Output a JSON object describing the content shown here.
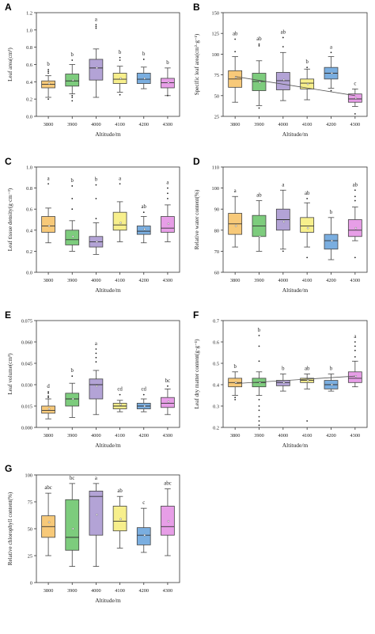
{
  "chart_data": [
    {
      "panel": "A",
      "type": "box",
      "xlabel": "Altitude/m",
      "ylabel": "Leaf area(cm²)",
      "categories": [
        "3800",
        "3900",
        "4000",
        "4100",
        "4200",
        "4300"
      ],
      "ylim": [
        0.0,
        1.2
      ],
      "yticks": [
        "0.0",
        "0.2",
        "0.4",
        "0.6",
        "0.8",
        "1.0",
        "1.2"
      ],
      "yticks_values": [
        0.0,
        0.2,
        0.4,
        0.6,
        0.8,
        1.0,
        1.2
      ],
      "boxes": [
        {
          "whisker_low": 0.22,
          "q1": 0.33,
          "median": 0.37,
          "q3": 0.41,
          "whisker_high": 0.47,
          "mean": 0.38,
          "outliers": [
            0.5,
            0.52,
            0.54,
            0.2
          ]
        },
        {
          "whisker_low": 0.26,
          "q1": 0.35,
          "median": 0.41,
          "q3": 0.49,
          "whisker_high": 0.6,
          "mean": 0.42,
          "outliers": [
            0.65,
            0.24,
            0.22,
            0.18
          ]
        },
        {
          "whisker_low": 0.22,
          "q1": 0.42,
          "median": 0.56,
          "q3": 0.66,
          "whisker_high": 0.78,
          "mean": 0.56,
          "outliers": [
            1.02,
            1.04,
            1.06
          ]
        },
        {
          "whisker_low": 0.28,
          "q1": 0.38,
          "median": 0.43,
          "q3": 0.5,
          "whisker_high": 0.58,
          "mean": 0.44,
          "outliers": [
            0.65,
            0.68,
            0.25
          ]
        },
        {
          "whisker_low": 0.32,
          "q1": 0.38,
          "median": 0.43,
          "q3": 0.5,
          "whisker_high": 0.57,
          "mean": 0.44,
          "outliers": [
            0.66
          ]
        },
        {
          "whisker_low": 0.24,
          "q1": 0.33,
          "median": 0.39,
          "q3": 0.44,
          "whisker_high": 0.56,
          "mean": 0.39,
          "outliers": [
            0.24
          ]
        }
      ],
      "letters": [
        "b",
        "b",
        "a",
        "b",
        "b",
        "b"
      ],
      "colors": [
        "#f7c979",
        "#7dcc7d",
        "#b3a3d6",
        "#f7ef8c",
        "#7aaee0",
        "#e79ee7"
      ]
    },
    {
      "panel": "B",
      "type": "box",
      "xlabel": "Altitude/m",
      "ylabel": "Specific leaf area(cm²·g⁻¹)",
      "categories": [
        "3800",
        "3900",
        "4000",
        "4100",
        "4200",
        "4300"
      ],
      "ylim": [
        25,
        150
      ],
      "yticks": [
        "25",
        "50",
        "75",
        "100",
        "125",
        "150"
      ],
      "yticks_values": [
        25,
        50,
        75,
        100,
        125,
        150
      ],
      "boxes": [
        {
          "whisker_low": 42,
          "q1": 60,
          "median": 70,
          "q3": 80,
          "whisker_high": 97,
          "mean": 72,
          "outliers": [
            103,
            118
          ]
        },
        {
          "whisker_low": 38,
          "q1": 56,
          "median": 67,
          "q3": 77,
          "whisker_high": 92,
          "mean": 66,
          "outliers": [
            110,
            112,
            35
          ]
        },
        {
          "whisker_low": 44,
          "q1": 57,
          "median": 68,
          "q3": 78,
          "whisker_high": 102,
          "mean": 69,
          "outliers": [
            109,
            120
          ]
        },
        {
          "whisker_low": 45,
          "q1": 58,
          "median": 65,
          "q3": 70,
          "whisker_high": 82,
          "mean": 64,
          "outliers": [
            84
          ]
        },
        {
          "whisker_low": 59,
          "q1": 70,
          "median": 77,
          "q3": 84,
          "whisker_high": 97,
          "mean": 77,
          "outliers": [
            102,
            56
          ]
        },
        {
          "whisker_low": 37,
          "q1": 42,
          "median": 46,
          "q3": 52,
          "whisker_high": 58,
          "mean": 47,
          "outliers": [
            28
          ]
        }
      ],
      "letters": [
        "ab",
        "ab",
        "ab",
        "b",
        "a",
        "c"
      ],
      "trend": [
        73,
        50
      ],
      "colors": [
        "#f7c979",
        "#7dcc7d",
        "#b3a3d6",
        "#f7ef8c",
        "#7aaee0",
        "#e79ee7"
      ]
    },
    {
      "panel": "C",
      "type": "box",
      "xlabel": "Altitude/m",
      "ylabel": "Leaf tissue density(g·cm⁻³)",
      "categories": [
        "3800",
        "3900",
        "4000",
        "4100",
        "4200",
        "4300"
      ],
      "ylim": [
        0.0,
        1.0
      ],
      "yticks": [
        "0.0",
        "0.2",
        "0.4",
        "0.6",
        "0.8",
        "1.0"
      ],
      "yticks_values": [
        0.0,
        0.2,
        0.4,
        0.6,
        0.8,
        1.0
      ],
      "boxes": [
        {
          "whisker_low": 0.28,
          "q1": 0.38,
          "median": 0.44,
          "q3": 0.53,
          "whisker_high": 0.61,
          "mean": 0.44,
          "outliers": [
            0.84
          ]
        },
        {
          "whisker_low": 0.2,
          "q1": 0.26,
          "median": 0.31,
          "q3": 0.4,
          "whisker_high": 0.49,
          "mean": 0.34,
          "outliers": [
            0.6,
            0.7,
            0.82
          ]
        },
        {
          "whisker_low": 0.17,
          "q1": 0.24,
          "median": 0.29,
          "q3": 0.34,
          "whisker_high": 0.47,
          "mean": 0.29,
          "outliers": [
            0.51,
            0.7,
            0.83
          ]
        },
        {
          "whisker_low": 0.29,
          "q1": 0.4,
          "median": 0.45,
          "q3": 0.57,
          "whisker_high": 0.67,
          "mean": 0.47,
          "outliers": [
            0.84
          ]
        },
        {
          "whisker_low": 0.28,
          "q1": 0.36,
          "median": 0.39,
          "q3": 0.44,
          "whisker_high": 0.53,
          "mean": 0.41,
          "outliers": [
            0.57
          ]
        },
        {
          "whisker_low": 0.29,
          "q1": 0.38,
          "median": 0.42,
          "q3": 0.53,
          "whisker_high": 0.64,
          "mean": 0.46,
          "outliers": [
            0.7,
            0.75,
            0.8
          ]
        }
      ],
      "letters": [
        "a",
        "b",
        "b",
        "a",
        "ab",
        "a"
      ],
      "colors": [
        "#f7c979",
        "#7dcc7d",
        "#b3a3d6",
        "#f7ef8c",
        "#7aaee0",
        "#e79ee7"
      ]
    },
    {
      "panel": "D",
      "type": "box",
      "xlabel": "Altitude/m",
      "ylabel": "Relative water content(%)",
      "categories": [
        "3800",
        "3900",
        "4000",
        "4100",
        "4200",
        "4300"
      ],
      "ylim": [
        60,
        110
      ],
      "yticks": [
        "60",
        "70",
        "80",
        "90",
        "100",
        "110"
      ],
      "yticks_values": [
        60,
        70,
        80,
        90,
        100,
        110
      ],
      "boxes": [
        {
          "whisker_low": 72,
          "q1": 78,
          "median": 83,
          "q3": 88,
          "whisker_high": 96,
          "mean": 82,
          "outliers": []
        },
        {
          "whisker_low": 70,
          "q1": 77,
          "median": 82,
          "q3": 87,
          "whisker_high": 94,
          "mean": 77,
          "outliers": []
        },
        {
          "whisker_low": 71,
          "q1": 80,
          "median": 85,
          "q3": 90,
          "whisker_high": 99,
          "mean": 84,
          "outliers": [
            70
          ]
        },
        {
          "whisker_low": 72,
          "q1": 79,
          "median": 82,
          "q3": 86,
          "whisker_high": 93,
          "mean": 81,
          "outliers": [
            95,
            67
          ]
        },
        {
          "whisker_low": 66,
          "q1": 71,
          "median": 75,
          "q3": 78,
          "whisker_high": 86,
          "mean": 75,
          "outliers": []
        },
        {
          "whisker_low": 75,
          "q1": 77,
          "median": 80,
          "q3": 85,
          "whisker_high": 91,
          "mean": 81,
          "outliers": [
            94,
            96,
            99,
            67
          ]
        }
      ],
      "letters": [
        "a",
        "ab",
        "a",
        "ab",
        "b",
        "ab"
      ],
      "colors": [
        "#f7c979",
        "#7dcc7d",
        "#b3a3d6",
        "#f7ef8c",
        "#7aaee0",
        "#e79ee7"
      ]
    },
    {
      "panel": "E",
      "type": "box",
      "xlabel": "Altitude/m",
      "ylabel": "Leaf volume(cm³)",
      "categories": [
        "3800",
        "3900",
        "4000",
        "4100",
        "4200",
        "4300"
      ],
      "ylim": [
        0.0,
        0.075
      ],
      "yticks": [
        "0.000",
        "0.015",
        "0.030",
        "0.045",
        "0.060",
        "0.075"
      ],
      "yticks_values": [
        0.0,
        0.015,
        0.03,
        0.045,
        0.06,
        0.075
      ],
      "boxes": [
        {
          "whisker_low": 0.006,
          "q1": 0.01,
          "median": 0.012,
          "q3": 0.015,
          "whisker_high": 0.02,
          "mean": 0.013,
          "outliers": [
            0.021,
            0.022,
            0.024,
            0.025
          ]
        },
        {
          "whisker_low": 0.007,
          "q1": 0.015,
          "median": 0.02,
          "q3": 0.024,
          "whisker_high": 0.031,
          "mean": 0.02,
          "outliers": [
            0.036
          ]
        },
        {
          "whisker_low": 0.009,
          "q1": 0.02,
          "median": 0.03,
          "q3": 0.034,
          "whisker_high": 0.04,
          "mean": 0.029,
          "outliers": [
            0.046,
            0.049,
            0.052,
            0.055
          ]
        },
        {
          "whisker_low": 0.011,
          "q1": 0.013,
          "median": 0.015,
          "q3": 0.017,
          "whisker_high": 0.019,
          "mean": 0.016,
          "outliers": [
            0.023
          ]
        },
        {
          "whisker_low": 0.011,
          "q1": 0.013,
          "median": 0.015,
          "q3": 0.017,
          "whisker_high": 0.02,
          "mean": 0.015,
          "outliers": [
            0.023
          ]
        },
        {
          "whisker_low": 0.009,
          "q1": 0.014,
          "median": 0.017,
          "q3": 0.021,
          "whisker_high": 0.027,
          "mean": 0.018,
          "outliers": [
            0.029
          ]
        }
      ],
      "letters": [
        "d",
        "b",
        "a",
        "cd",
        "cd",
        "bc"
      ],
      "colors": [
        "#f7c979",
        "#7dcc7d",
        "#b3a3d6",
        "#f7ef8c",
        "#7aaee0",
        "#e79ee7"
      ]
    },
    {
      "panel": "F",
      "type": "box",
      "xlabel": "Altitude/m",
      "ylabel": "Leaf dry matter content(g·g⁻¹)",
      "categories": [
        "3800",
        "3900",
        "4000",
        "4100",
        "4200",
        "4300"
      ],
      "ylim": [
        0.2,
        0.7
      ],
      "yticks": [
        "0.2",
        "0.3",
        "0.4",
        "0.5",
        "0.6",
        "0.7"
      ],
      "yticks_values": [
        0.2,
        0.3,
        0.4,
        0.5,
        0.6,
        0.7
      ],
      "boxes": [
        {
          "whisker_low": 0.35,
          "q1": 0.39,
          "median": 0.41,
          "q3": 0.43,
          "whisker_high": 0.46,
          "mean": 0.41,
          "outliers": [
            0.34,
            0.33
          ]
        },
        {
          "whisker_low": 0.35,
          "q1": 0.39,
          "median": 0.41,
          "q3": 0.43,
          "whisker_high": 0.46,
          "mean": 0.41,
          "outliers": [
            0.51,
            0.58,
            0.63,
            0.33,
            0.3,
            0.28,
            0.25,
            0.23,
            0.21
          ]
        },
        {
          "whisker_low": 0.37,
          "q1": 0.395,
          "median": 0.41,
          "q3": 0.42,
          "whisker_high": 0.45,
          "mean": 0.41,
          "outliers": []
        },
        {
          "whisker_low": 0.38,
          "q1": 0.41,
          "median": 0.42,
          "q3": 0.43,
          "whisker_high": 0.45,
          "mean": 0.42,
          "outliers": [
            0.23
          ]
        },
        {
          "whisker_low": 0.37,
          "q1": 0.38,
          "median": 0.4,
          "q3": 0.42,
          "whisker_high": 0.45,
          "mean": 0.4,
          "outliers": []
        },
        {
          "whisker_low": 0.39,
          "q1": 0.41,
          "median": 0.43,
          "q3": 0.46,
          "whisker_high": 0.51,
          "mean": 0.44,
          "outliers": [
            0.53,
            0.56,
            0.58,
            0.6
          ]
        }
      ],
      "letters": [
        "b",
        "b",
        "b",
        "ab",
        "b",
        "a"
      ],
      "trend": [
        0.405,
        0.44
      ],
      "colors": [
        "#f7c979",
        "#7dcc7d",
        "#b3a3d6",
        "#f7ef8c",
        "#7aaee0",
        "#e79ee7"
      ]
    },
    {
      "panel": "G",
      "type": "box",
      "xlabel": "Altitude/m",
      "ylabel": "Relative chlorophyll content(%)",
      "categories": [
        "3800",
        "3900",
        "4000",
        "4100",
        "4200",
        "4300"
      ],
      "ylim": [
        0,
        100
      ],
      "yticks": [
        "0",
        "25",
        "50",
        "75",
        "100"
      ],
      "yticks_values": [
        0,
        25,
        50,
        75,
        100
      ],
      "boxes": [
        {
          "whisker_low": 25,
          "q1": 42,
          "median": 52,
          "q3": 62,
          "whisker_high": 83,
          "mean": 56,
          "outliers": []
        },
        {
          "whisker_low": 15,
          "q1": 30,
          "median": 42,
          "q3": 77,
          "whisker_high": 92,
          "mean": 50,
          "outliers": []
        },
        {
          "whisker_low": 15,
          "q1": 44,
          "median": 80,
          "q3": 85,
          "whisker_high": 92,
          "mean": 63,
          "outliers": []
        },
        {
          "whisker_low": 32,
          "q1": 48,
          "median": 57,
          "q3": 71,
          "whisker_high": 80,
          "mean": 59,
          "outliers": []
        },
        {
          "whisker_low": 28,
          "q1": 35,
          "median": 44,
          "q3": 51,
          "whisker_high": 69,
          "mean": 44,
          "outliers": []
        },
        {
          "whisker_low": 25,
          "q1": 44,
          "median": 52,
          "q3": 71,
          "whisker_high": 87,
          "mean": 57,
          "outliers": []
        }
      ],
      "letters": [
        "abc",
        "bc",
        "a",
        "ab",
        "c",
        "abc"
      ],
      "colors": [
        "#f7c979",
        "#7dcc7d",
        "#b3a3d6",
        "#f7ef8c",
        "#7aaee0",
        "#e79ee7"
      ]
    }
  ]
}
